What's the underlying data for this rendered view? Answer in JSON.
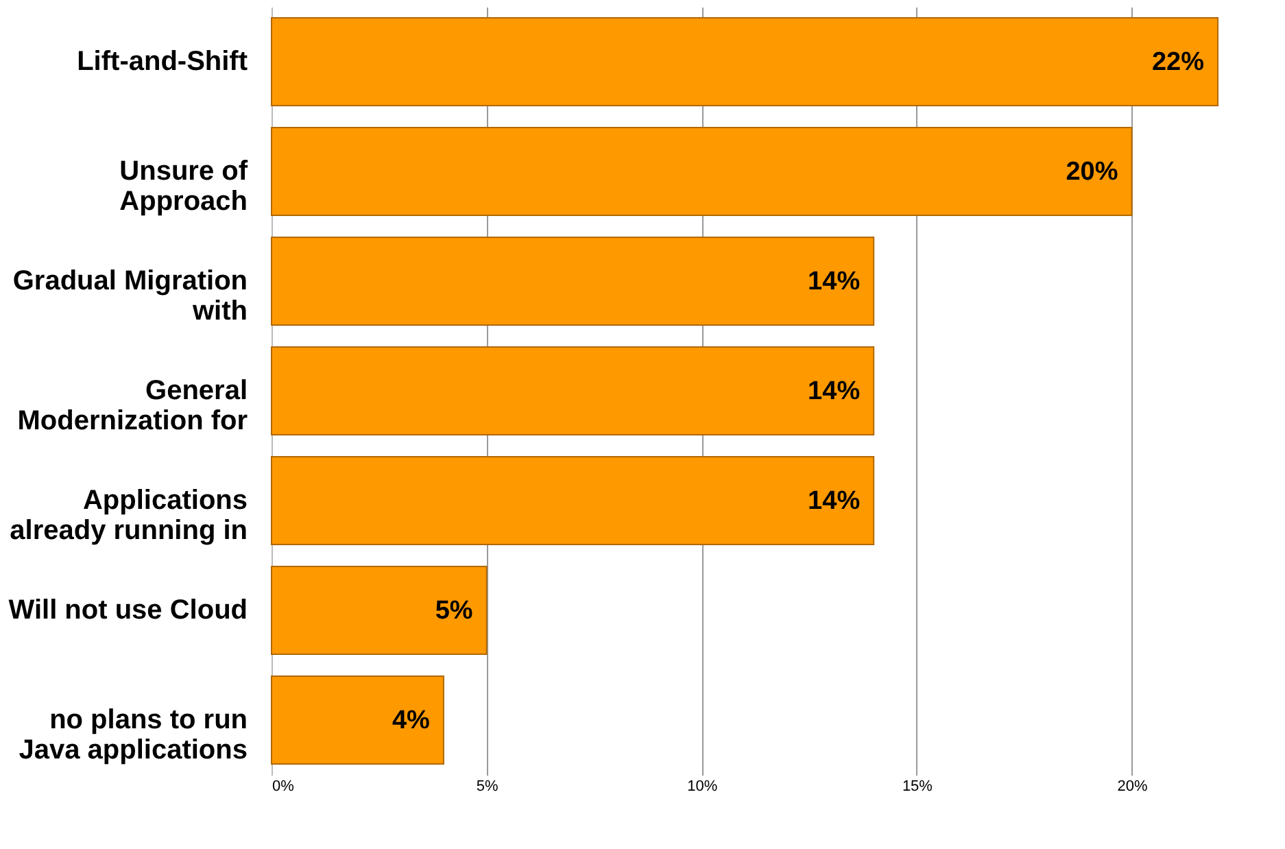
{
  "chart_data": {
    "type": "bar",
    "orientation": "horizontal",
    "categories": [
      "Lift-and-Shift",
      "Unsure of\nApproach",
      "Gradual Migration\nwith",
      "General\nModernization for",
      "Applications\nalready running in",
      "Will not use Cloud",
      "no plans to run\nJava applications"
    ],
    "values": [
      22,
      20,
      14,
      14,
      14,
      5,
      4
    ],
    "value_labels": [
      "22%",
      "20%",
      "14%",
      "14%",
      "14%",
      "5%",
      "4%"
    ],
    "color": "#ff9900",
    "xlim": [
      0,
      22
    ],
    "xticks": [
      {
        "value": 0,
        "label": "0%"
      },
      {
        "value": 5,
        "label": "5%"
      },
      {
        "value": 10,
        "label": "10%"
      },
      {
        "value": 15,
        "label": "15%"
      },
      {
        "value": 20,
        "label": "20%"
      }
    ],
    "grid": "x"
  }
}
